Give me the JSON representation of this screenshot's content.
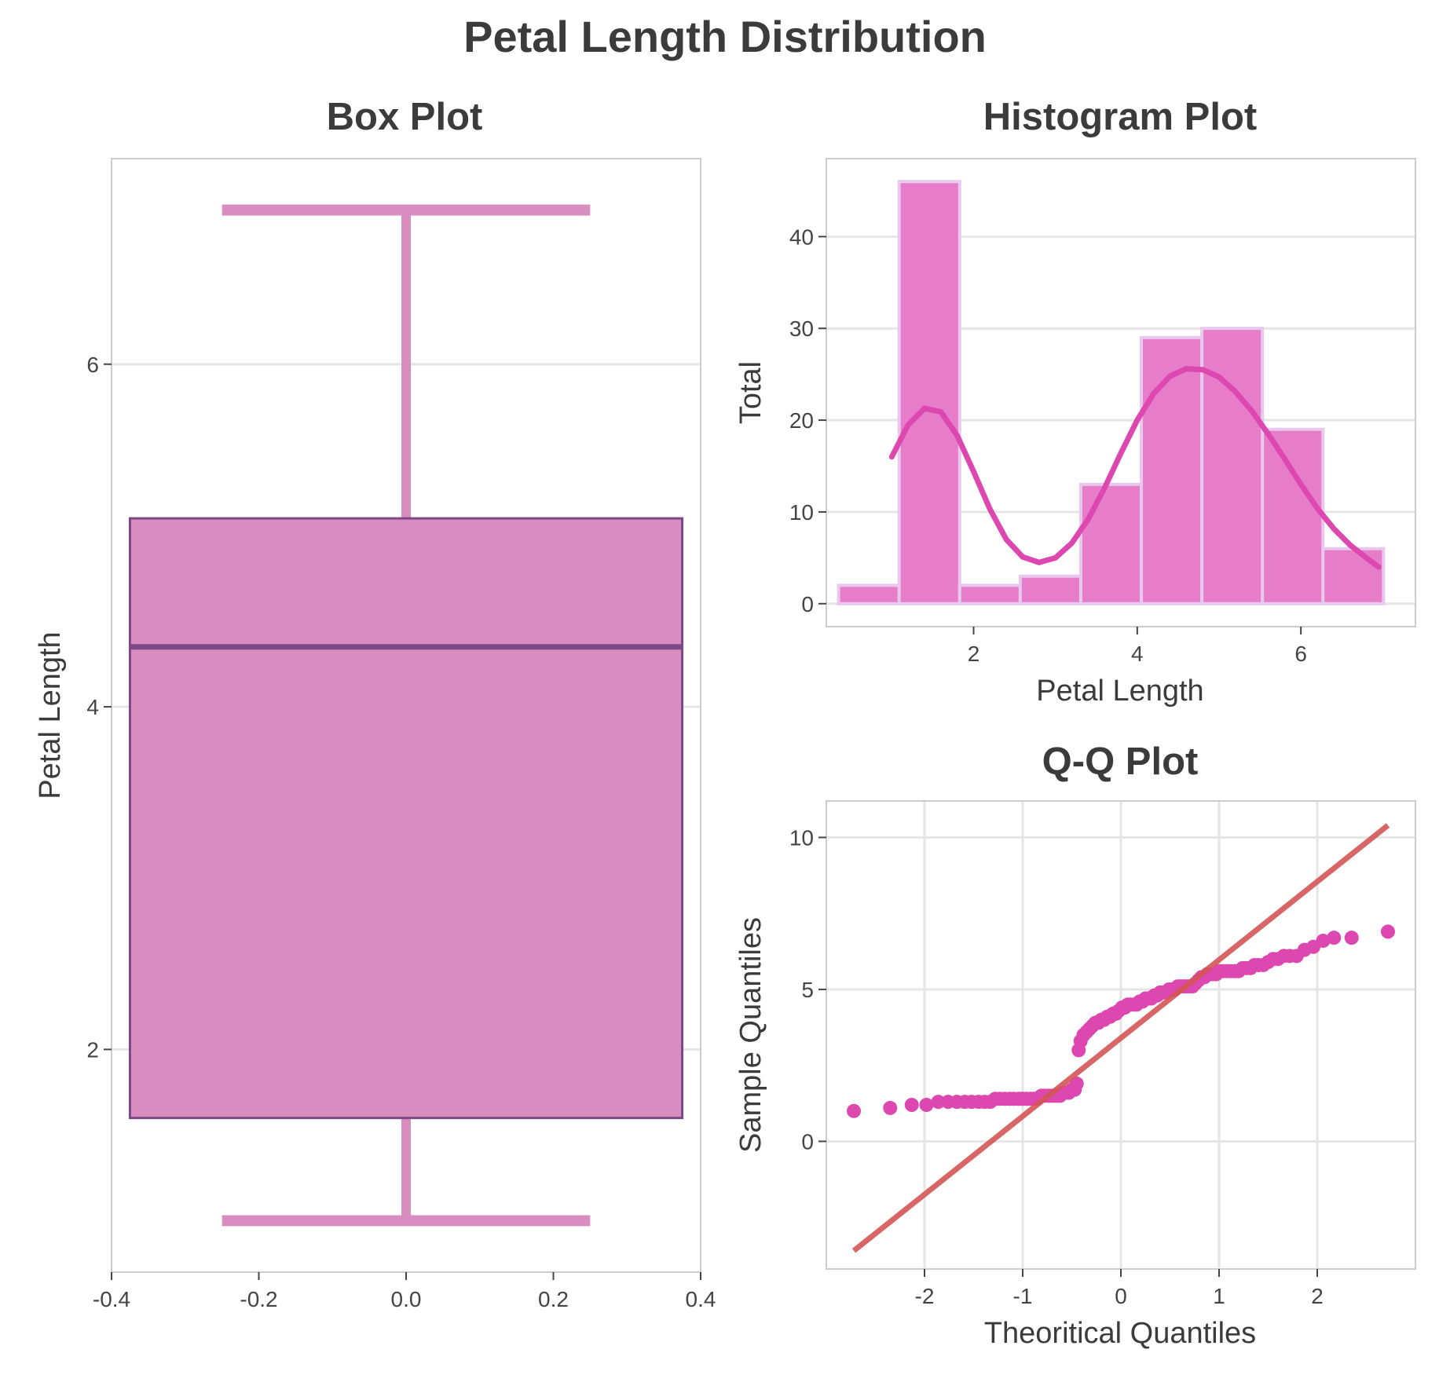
{
  "figure": {
    "title": "Petal Length Distribution"
  },
  "colors": {
    "pink": "#d98cc0",
    "magenta": "#dd47b0",
    "purple": "#7a4a86",
    "hist_fill": "#e77dc8",
    "hist_edge": "#e9c8ef",
    "qq_line": "#d45656"
  },
  "chart_data": [
    {
      "id": "box",
      "type": "box",
      "title": "Box Plot",
      "xlabel": "",
      "ylabel": "Petal Length",
      "xlim": [
        -0.4,
        0.4
      ],
      "ylim": [
        0.7,
        7.2
      ],
      "xticks": [
        -0.4,
        -0.2,
        0.0,
        0.2,
        0.4
      ],
      "xtick_labels": [
        "-0.4",
        "-0.2",
        "0.0",
        "0.2",
        "0.4"
      ],
      "yticks": [
        2,
        4,
        6
      ],
      "ytick_labels": [
        "2",
        "4",
        "6"
      ],
      "box": {
        "whisker_low": 1.0,
        "q1": 1.6,
        "median": 4.35,
        "q3": 5.1,
        "whisker_high": 6.9
      },
      "box_halfwidth": 0.375,
      "cap_halfwidth": 0.25
    },
    {
      "id": "hist",
      "type": "bar",
      "title": "Histogram Plot",
      "xlabel": "Petal Length",
      "ylabel": "Total",
      "xlim": [
        0.2,
        7.4
      ],
      "ylim": [
        -2.5,
        48.5
      ],
      "xticks": [
        2,
        4,
        6
      ],
      "xtick_labels": [
        "2",
        "4",
        "6"
      ],
      "yticks": [
        0,
        10,
        20,
        30,
        40
      ],
      "ytick_labels": [
        "0",
        "10",
        "20",
        "30",
        "40"
      ],
      "bins": [
        {
          "x0": 0.35,
          "x1": 1.09,
          "count": 2
        },
        {
          "x0": 1.09,
          "x1": 1.83,
          "count": 46
        },
        {
          "x0": 1.83,
          "x1": 2.57,
          "count": 2
        },
        {
          "x0": 2.57,
          "x1": 3.31,
          "count": 3
        },
        {
          "x0": 3.31,
          "x1": 4.05,
          "count": 13
        },
        {
          "x0": 4.05,
          "x1": 4.79,
          "count": 29
        },
        {
          "x0": 4.79,
          "x1": 5.53,
          "count": 30
        },
        {
          "x0": 5.53,
          "x1": 6.27,
          "count": 19
        },
        {
          "x0": 6.27,
          "x1": 7.01,
          "count": 6
        }
      ],
      "kde": [
        [
          1.0,
          16.0
        ],
        [
          1.2,
          19.5
        ],
        [
          1.4,
          21.3
        ],
        [
          1.6,
          20.9
        ],
        [
          1.8,
          18.3
        ],
        [
          2.0,
          14.4
        ],
        [
          2.2,
          10.3
        ],
        [
          2.4,
          7.0
        ],
        [
          2.6,
          5.1
        ],
        [
          2.8,
          4.5
        ],
        [
          3.0,
          5.0
        ],
        [
          3.2,
          6.6
        ],
        [
          3.4,
          9.2
        ],
        [
          3.6,
          12.6
        ],
        [
          3.8,
          16.4
        ],
        [
          4.0,
          20.0
        ],
        [
          4.2,
          22.9
        ],
        [
          4.4,
          24.8
        ],
        [
          4.6,
          25.6
        ],
        [
          4.8,
          25.5
        ],
        [
          5.0,
          24.7
        ],
        [
          5.2,
          23.1
        ],
        [
          5.4,
          21.0
        ],
        [
          5.6,
          18.5
        ],
        [
          5.8,
          15.8
        ],
        [
          6.0,
          13.0
        ],
        [
          6.2,
          10.4
        ],
        [
          6.4,
          8.2
        ],
        [
          6.6,
          6.4
        ],
        [
          6.8,
          5.0
        ],
        [
          6.95,
          4.0
        ]
      ]
    },
    {
      "id": "qq",
      "type": "scatter",
      "title": "Q-Q Plot",
      "xlabel": "Theoritical Quantiles",
      "ylabel": "Sample Quantiles",
      "xlim": [
        -3.0,
        3.0
      ],
      "ylim": [
        -4.2,
        11.2
      ],
      "xticks": [
        -2,
        -1,
        0,
        1,
        2
      ],
      "xtick_labels": [
        "-2",
        "-1",
        "0",
        "1",
        "2"
      ],
      "yticks": [
        0,
        5,
        10
      ],
      "ytick_labels": [
        "0",
        "5",
        "10"
      ],
      "line": {
        "x": [
          -2.72,
          2.72
        ],
        "y": [
          -3.6,
          10.4
        ]
      },
      "points": [
        [
          -2.72,
          1.0
        ],
        [
          -2.35,
          1.1
        ],
        [
          -2.13,
          1.2
        ],
        [
          -1.98,
          1.2
        ],
        [
          -1.86,
          1.3
        ],
        [
          -1.76,
          1.3
        ],
        [
          -1.67,
          1.3
        ],
        [
          -1.59,
          1.3
        ],
        [
          -1.52,
          1.3
        ],
        [
          -1.45,
          1.3
        ],
        [
          -1.39,
          1.3
        ],
        [
          -1.33,
          1.3
        ],
        [
          -1.28,
          1.4
        ],
        [
          -1.23,
          1.4
        ],
        [
          -1.18,
          1.4
        ],
        [
          -1.13,
          1.4
        ],
        [
          -1.09,
          1.4
        ],
        [
          -1.04,
          1.4
        ],
        [
          -1.0,
          1.4
        ],
        [
          -0.96,
          1.4
        ],
        [
          -0.92,
          1.4
        ],
        [
          -0.88,
          1.4
        ],
        [
          -0.85,
          1.4
        ],
        [
          -0.81,
          1.5
        ],
        [
          -0.78,
          1.5
        ],
        [
          -0.74,
          1.5
        ],
        [
          -0.71,
          1.5
        ],
        [
          -0.68,
          1.5
        ],
        [
          -0.65,
          1.5
        ],
        [
          -0.62,
          1.5
        ],
        [
          -0.59,
          1.6
        ],
        [
          -0.56,
          1.6
        ],
        [
          -0.53,
          1.6
        ],
        [
          -0.5,
          1.7
        ],
        [
          -0.47,
          1.7
        ],
        [
          -0.45,
          1.9
        ],
        [
          -0.43,
          3.0
        ],
        [
          -0.41,
          3.3
        ],
        [
          -0.38,
          3.5
        ],
        [
          -0.35,
          3.6
        ],
        [
          -0.32,
          3.7
        ],
        [
          -0.29,
          3.8
        ],
        [
          -0.26,
          3.9
        ],
        [
          -0.23,
          3.9
        ],
        [
          -0.2,
          4.0
        ],
        [
          -0.17,
          4.0
        ],
        [
          -0.14,
          4.1
        ],
        [
          -0.11,
          4.1
        ],
        [
          -0.08,
          4.2
        ],
        [
          -0.05,
          4.2
        ],
        [
          -0.02,
          4.3
        ],
        [
          0.01,
          4.4
        ],
        [
          0.04,
          4.4
        ],
        [
          0.07,
          4.5
        ],
        [
          0.1,
          4.5
        ],
        [
          0.13,
          4.5
        ],
        [
          0.16,
          4.5
        ],
        [
          0.19,
          4.6
        ],
        [
          0.22,
          4.6
        ],
        [
          0.25,
          4.7
        ],
        [
          0.28,
          4.7
        ],
        [
          0.31,
          4.7
        ],
        [
          0.34,
          4.8
        ],
        [
          0.37,
          4.8
        ],
        [
          0.4,
          4.9
        ],
        [
          0.43,
          4.9
        ],
        [
          0.46,
          4.9
        ],
        [
          0.49,
          5.0
        ],
        [
          0.52,
          5.0
        ],
        [
          0.55,
          5.0
        ],
        [
          0.58,
          5.1
        ],
        [
          0.61,
          5.1
        ],
        [
          0.64,
          5.1
        ],
        [
          0.67,
          5.1
        ],
        [
          0.7,
          5.1
        ],
        [
          0.73,
          5.1
        ],
        [
          0.76,
          5.2
        ],
        [
          0.79,
          5.3
        ],
        [
          0.82,
          5.4
        ],
        [
          0.85,
          5.4
        ],
        [
          0.88,
          5.5
        ],
        [
          0.91,
          5.5
        ],
        [
          0.94,
          5.5
        ],
        [
          0.97,
          5.5
        ],
        [
          1.0,
          5.6
        ],
        [
          1.04,
          5.6
        ],
        [
          1.08,
          5.6
        ],
        [
          1.12,
          5.6
        ],
        [
          1.16,
          5.6
        ],
        [
          1.2,
          5.6
        ],
        [
          1.24,
          5.7
        ],
        [
          1.28,
          5.7
        ],
        [
          1.32,
          5.7
        ],
        [
          1.36,
          5.8
        ],
        [
          1.4,
          5.8
        ],
        [
          1.45,
          5.8
        ],
        [
          1.5,
          5.9
        ],
        [
          1.55,
          6.0
        ],
        [
          1.6,
          6.0
        ],
        [
          1.66,
          6.1
        ],
        [
          1.72,
          6.1
        ],
        [
          1.79,
          6.1
        ],
        [
          1.87,
          6.3
        ],
        [
          1.96,
          6.4
        ],
        [
          2.06,
          6.6
        ],
        [
          2.17,
          6.7
        ],
        [
          2.35,
          6.7
        ],
        [
          2.72,
          6.9
        ]
      ]
    }
  ]
}
